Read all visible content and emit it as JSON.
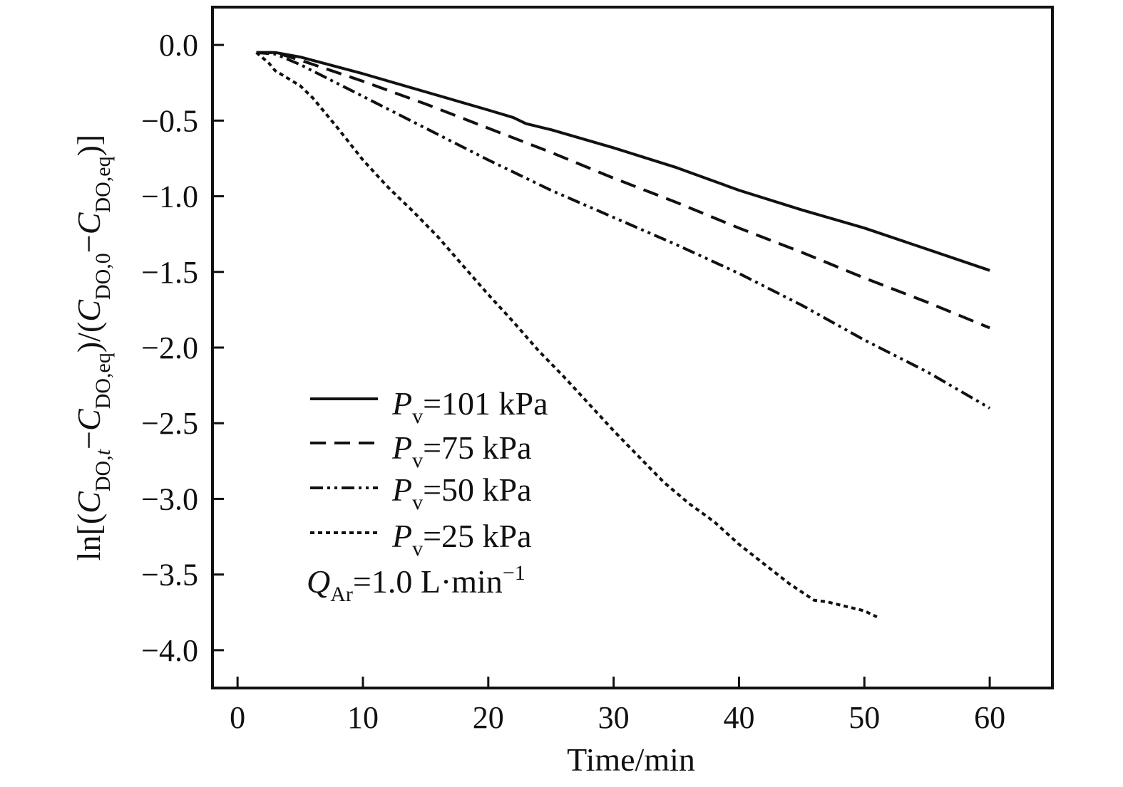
{
  "chart_data": {
    "type": "line",
    "xlabel": "Time/min",
    "ylabel": {
      "prefix": "ln[(",
      "c1": "C",
      "c1_sub": "DO,",
      "c1_sub_italic": "t",
      "minus1": "−",
      "c2": "C",
      "c2_sub": "DO,eq",
      "mid": ")/(",
      "c3": "C",
      "c3_sub": "DO,0",
      "minus2": "−",
      "c4": "C",
      "c4_sub": "DO,eq",
      "suffix": ")]"
    },
    "xlim": [
      -2,
      65
    ],
    "ylim": [
      -4.25,
      0.25
    ],
    "x_ticks": [
      0,
      10,
      20,
      30,
      40,
      50,
      60
    ],
    "x_tick_labels": [
      "0",
      "10",
      "20",
      "30",
      "40",
      "50",
      "60"
    ],
    "y_ticks": [
      0.0,
      -0.5,
      -1.0,
      -1.5,
      -2.0,
      -2.5,
      -3.0,
      -3.5,
      -4.0
    ],
    "y_tick_labels": [
      "0.0",
      "−0.5",
      "−1.0",
      "−1.5",
      "−2.0",
      "−2.5",
      "−3.0",
      "−3.5",
      "−4.0"
    ],
    "grid": false,
    "legend_position": "lower-left",
    "series": [
      {
        "name": "Pv=101 kPa",
        "label_main": "P",
        "label_sub": "v",
        "label_rest": "=101 kPa",
        "dash": "solid",
        "x": [
          1.5,
          3,
          5,
          10,
          15,
          20,
          22,
          23,
          25,
          30,
          35,
          40,
          45,
          50,
          55,
          60
        ],
        "y": [
          -0.05,
          -0.05,
          -0.08,
          -0.19,
          -0.31,
          -0.43,
          -0.48,
          -0.52,
          -0.56,
          -0.68,
          -0.81,
          -0.96,
          -1.09,
          -1.21,
          -1.35,
          -1.49
        ]
      },
      {
        "name": "Pv=75 kPa",
        "label_main": "P",
        "label_sub": "v",
        "label_rest": "=75 kPa",
        "dash": "dash",
        "x": [
          1.5,
          3,
          5,
          10,
          15,
          20,
          25,
          30,
          35,
          40,
          45,
          50,
          55,
          60
        ],
        "y": [
          -0.05,
          -0.05,
          -0.1,
          -0.24,
          -0.39,
          -0.55,
          -0.71,
          -0.88,
          -1.04,
          -1.21,
          -1.37,
          -1.54,
          -1.7,
          -1.87
        ]
      },
      {
        "name": "Pv=50 kPa",
        "label_main": "P",
        "label_sub": "v",
        "label_rest": "=50 kPa",
        "dash": "dashdotdot",
        "x": [
          1.5,
          3,
          5,
          10,
          15,
          20,
          25,
          30,
          35,
          40,
          45,
          50,
          55,
          60
        ],
        "y": [
          -0.05,
          -0.06,
          -0.13,
          -0.34,
          -0.55,
          -0.76,
          -0.96,
          -1.14,
          -1.32,
          -1.51,
          -1.72,
          -1.95,
          -2.16,
          -2.4
        ]
      },
      {
        "name": "Pv=25 kPa",
        "label_main": "P",
        "label_sub": "v",
        "label_rest": "=25 kPa",
        "dash": "dotted",
        "x": [
          1.5,
          2.5,
          3,
          4,
          5,
          6,
          8,
          10,
          12,
          14,
          16,
          18,
          20,
          22,
          24,
          26,
          28,
          30,
          32,
          34,
          36,
          38,
          40,
          42,
          44,
          46,
          47,
          48,
          49,
          50,
          51
        ],
        "y": [
          -0.05,
          -0.12,
          -0.17,
          -0.22,
          -0.27,
          -0.35,
          -0.55,
          -0.76,
          -0.94,
          -1.1,
          -1.27,
          -1.46,
          -1.65,
          -1.83,
          -2.02,
          -2.19,
          -2.37,
          -2.55,
          -2.72,
          -2.89,
          -3.03,
          -3.15,
          -3.3,
          -3.43,
          -3.56,
          -3.67,
          -3.68,
          -3.7,
          -3.72,
          -3.74,
          -3.78
        ]
      }
    ],
    "annotation": {
      "q": "Q",
      "q_sub": "Ar",
      "rest": "=1.0 L·min",
      "sup": "−1"
    },
    "colors": {
      "line": "#111111",
      "background": "#ffffff"
    }
  }
}
